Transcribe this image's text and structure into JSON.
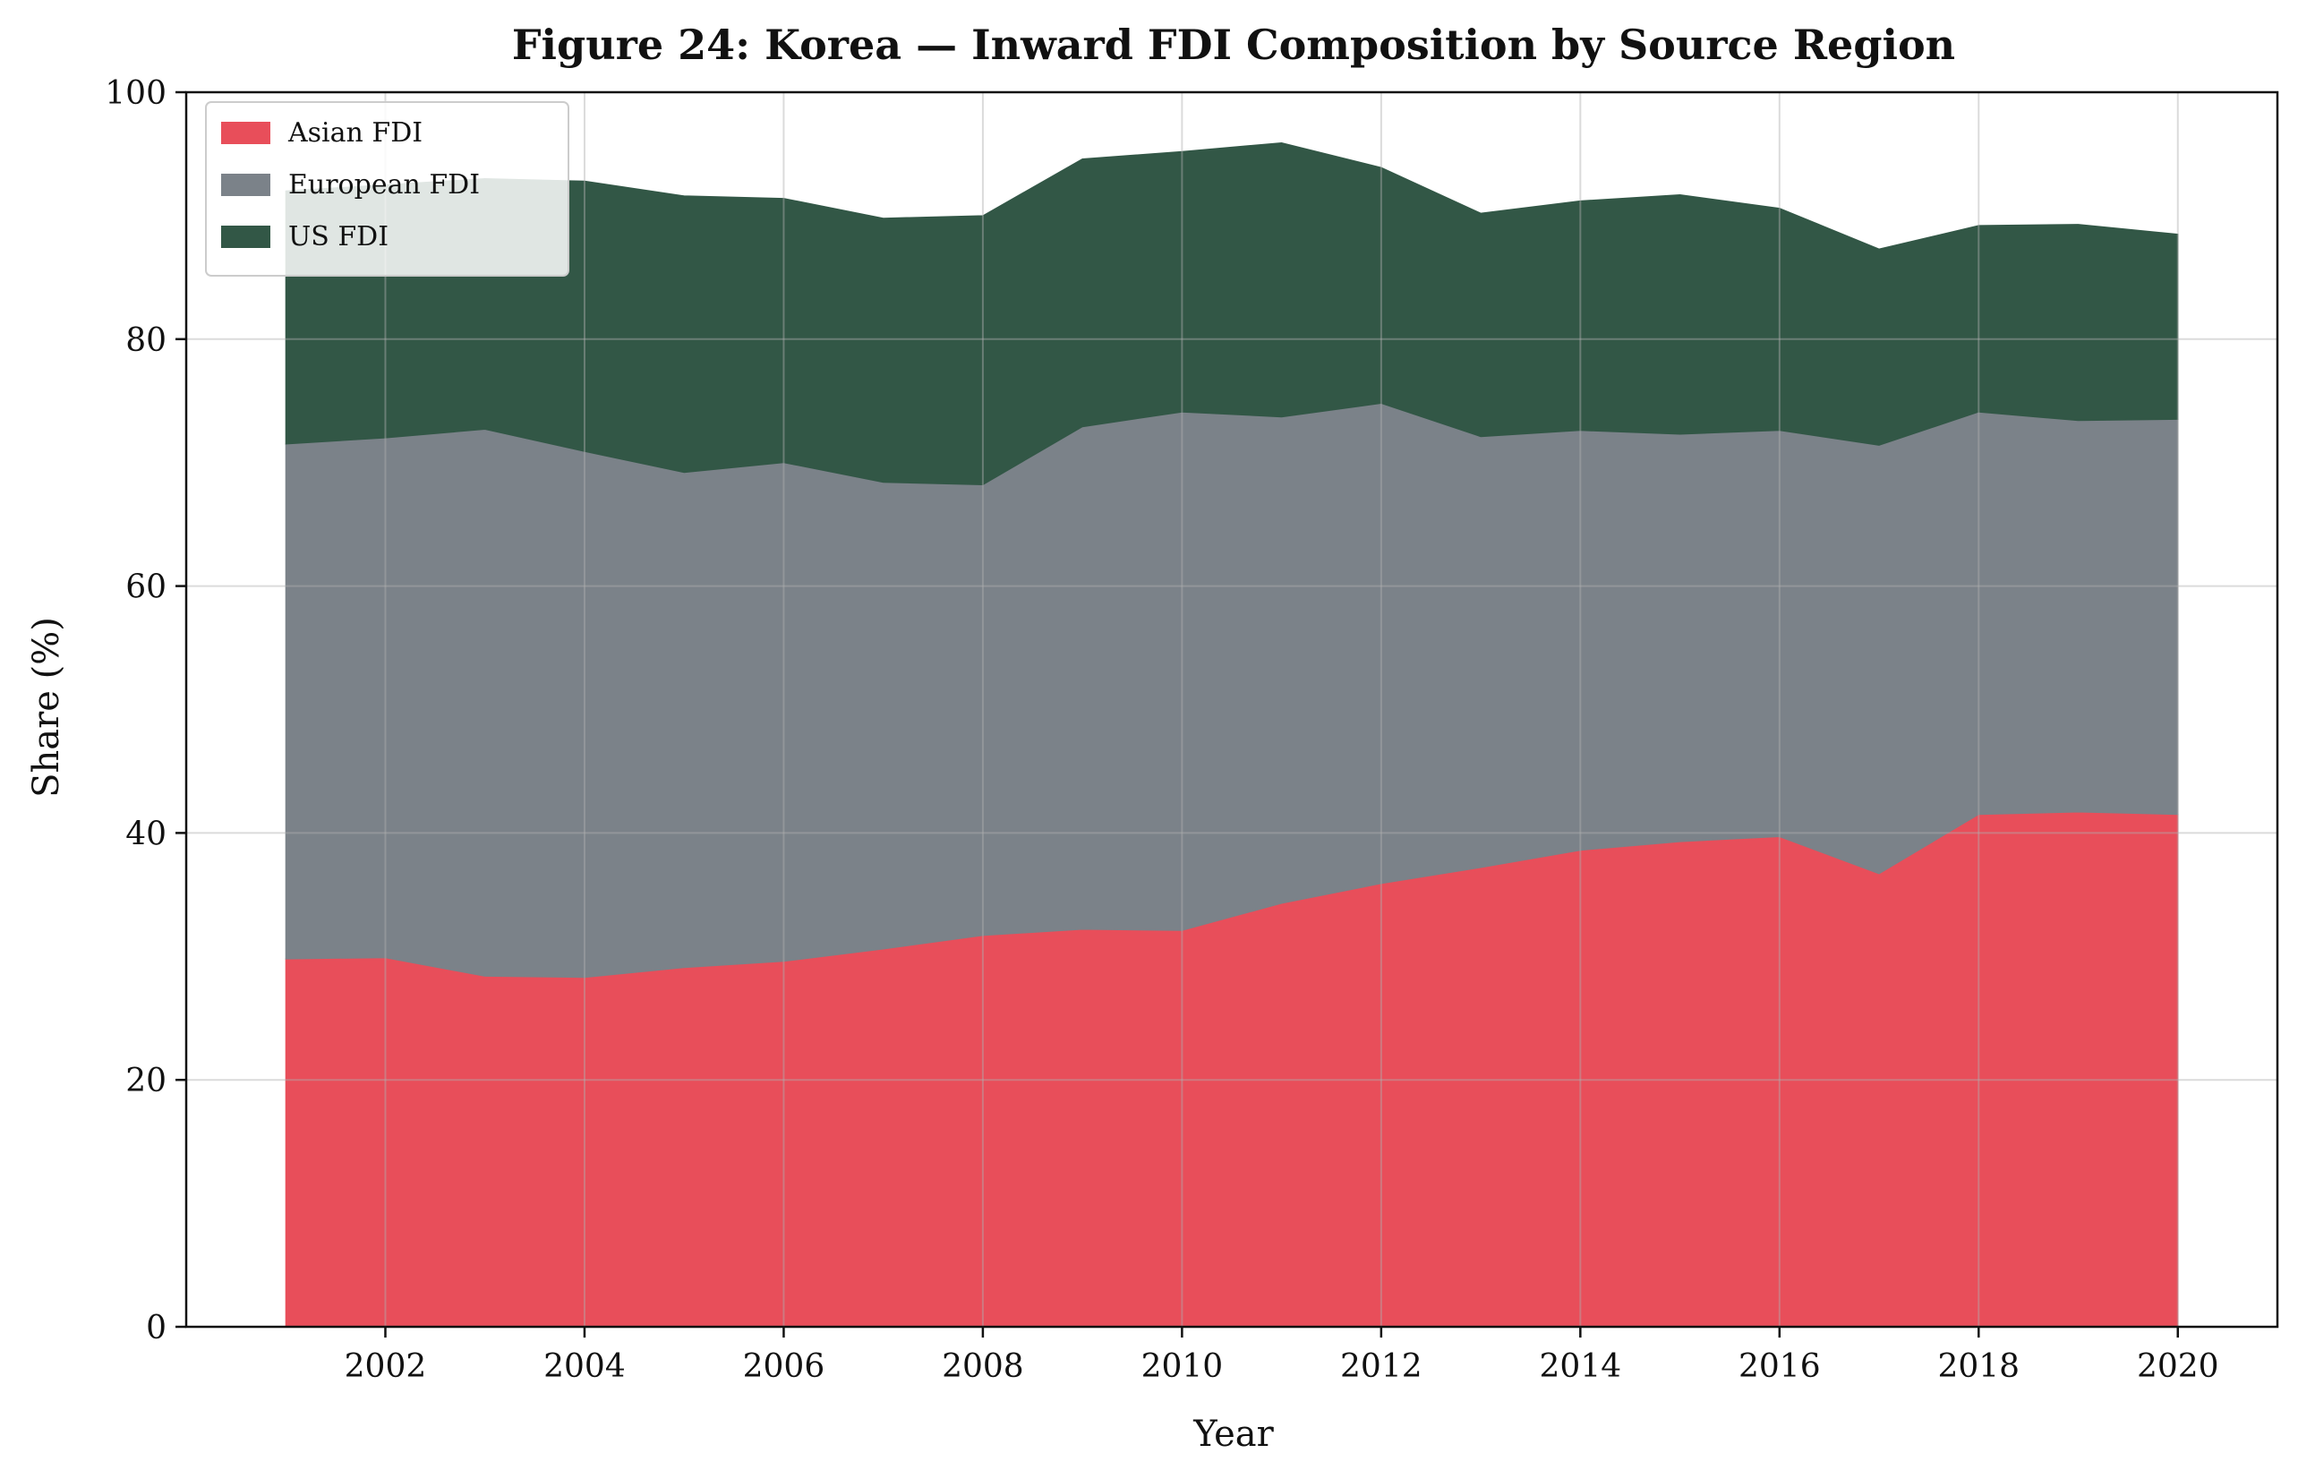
{
  "chart_data": {
    "type": "area",
    "stacked": true,
    "title": "Figure 24: Korea — Inward FDI Composition by Source Region",
    "xlabel": "Year",
    "ylabel": "Share (%)",
    "xlim": [
      2000.0,
      2021.0
    ],
    "ylim": [
      0,
      100
    ],
    "x_ticks": [
      2002,
      2004,
      2006,
      2008,
      2010,
      2012,
      2014,
      2016,
      2018,
      2020
    ],
    "y_ticks": [
      0,
      20,
      40,
      60,
      80,
      100
    ],
    "grid": true,
    "legend_position": "top-left",
    "x": [
      2001,
      2002,
      2003,
      2004,
      2005,
      2006,
      2007,
      2008,
      2009,
      2010,
      2011,
      2012,
      2013,
      2014,
      2015,
      2016,
      2017,
      2018,
      2019,
      2020
    ],
    "series": [
      {
        "name": "Asian FDI",
        "color": "#e84e5a",
        "values": [
          29.8,
          29.9,
          28.4,
          28.3,
          29.1,
          29.6,
          30.6,
          31.7,
          32.2,
          32.1,
          34.3,
          35.9,
          37.2,
          38.6,
          39.3,
          39.7,
          36.7,
          41.5,
          41.7,
          41.5
        ]
      },
      {
        "name": "European FDI",
        "color": "#7b8289",
        "values": [
          41.7,
          42.1,
          44.3,
          42.6,
          40.1,
          40.4,
          37.8,
          36.5,
          40.7,
          42.0,
          39.4,
          38.9,
          34.9,
          34.0,
          33.0,
          32.9,
          34.7,
          32.6,
          31.7,
          32.0
        ]
      },
      {
        "name": "US FDI",
        "color": "#325746",
        "values": [
          20.5,
          20.5,
          20.3,
          21.9,
          22.4,
          21.4,
          21.4,
          21.8,
          21.7,
          21.1,
          22.2,
          19.1,
          18.1,
          18.6,
          19.4,
          18.0,
          15.9,
          15.1,
          15.9,
          15.0
        ]
      }
    ]
  }
}
